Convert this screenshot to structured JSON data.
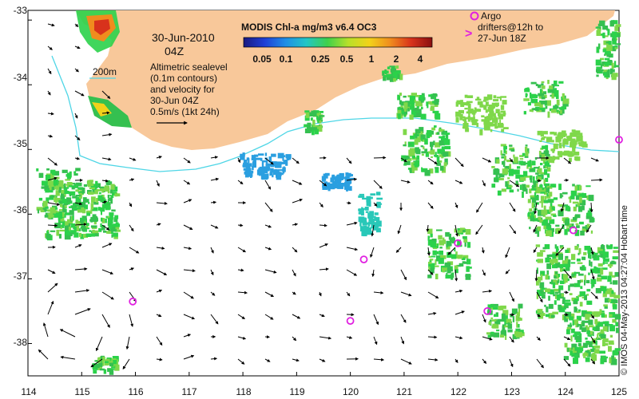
{
  "map": {
    "title": "MODIS Chl-a mg/m3 v6.4 OC3",
    "date": "30-Jun-2010",
    "time": "04Z",
    "depth_contour_label": "200m",
    "sealevel_note": [
      "Altimetric sealevel",
      "(0.1m contours)",
      "and velocity for",
      "30-Jun 04Z"
    ],
    "vector_scale": "0.5m/s (1kt 24h)",
    "argo_legend": [
      "Argo",
      "drifters@12h to",
      "27-Jun 18Z"
    ],
    "credit": "© IMOS 04-May-2013 04:27:04 Hobart time",
    "colorbar_ticks": [
      "0.05",
      "0.1",
      "0.25",
      "0.5",
      "1",
      "2",
      "4"
    ],
    "colorbar_colors": [
      "#1a1a80",
      "#1f3fd6",
      "#1f8ee6",
      "#22c6c6",
      "#3ed14b",
      "#b8e02a",
      "#f2d21a",
      "#f08c1e",
      "#d8321c",
      "#8a1010"
    ],
    "land_color": "#f8c89a",
    "chl_colors": [
      "#2bd24a",
      "#35c050",
      "#7fd84a",
      "#28c8b8",
      "#2a9fe0"
    ],
    "latitude_labels": [
      "-33",
      "-34",
      "-35",
      "-36",
      "-37",
      "-38"
    ],
    "longitude_labels": [
      "114",
      "115",
      "116",
      "117",
      "118",
      "119",
      "120",
      "121",
      "122",
      "123",
      "124",
      "125"
    ],
    "argo_floats": [
      {
        "lon": 122.0,
        "lat": -36.45
      },
      {
        "lon": 124.15,
        "lat": -36.25
      },
      {
        "lon": 120.25,
        "lat": -36.7
      },
      {
        "lon": 115.95,
        "lat": -37.35
      },
      {
        "lon": 122.55,
        "lat": -37.5
      },
      {
        "lon": 120.0,
        "lat": -37.65
      },
      {
        "lon": 125.0,
        "lat": -34.85
      }
    ]
  }
}
